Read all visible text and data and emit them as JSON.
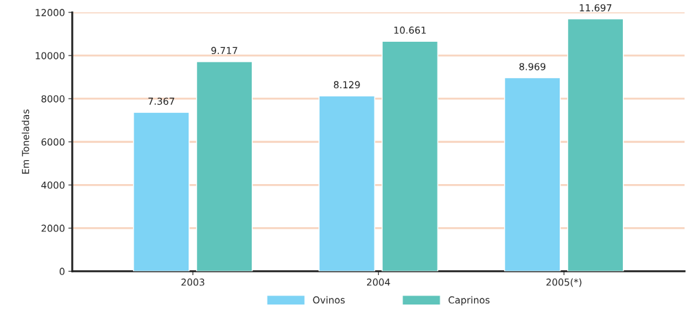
{
  "chart_data": {
    "type": "bar",
    "ylabel": "Em Toneladas",
    "categories": [
      "2003",
      "2004",
      "2005(*)"
    ],
    "series": [
      {
        "name": "Ovinos",
        "color": "#7dd3f5",
        "values": [
          7367,
          8129,
          8969
        ],
        "value_labels": [
          "7.367",
          "8.129",
          "8.969"
        ]
      },
      {
        "name": "Caprinos",
        "color": "#5fc4bb",
        "values": [
          9717,
          10661,
          11697
        ],
        "value_labels": [
          "9.717",
          "10.661",
          "11.697"
        ]
      }
    ],
    "ylim": [
      0,
      12000
    ],
    "yticks": [
      0,
      2000,
      4000,
      6000,
      8000,
      10000,
      12000
    ],
    "grid": "y",
    "legend": "bottom"
  }
}
